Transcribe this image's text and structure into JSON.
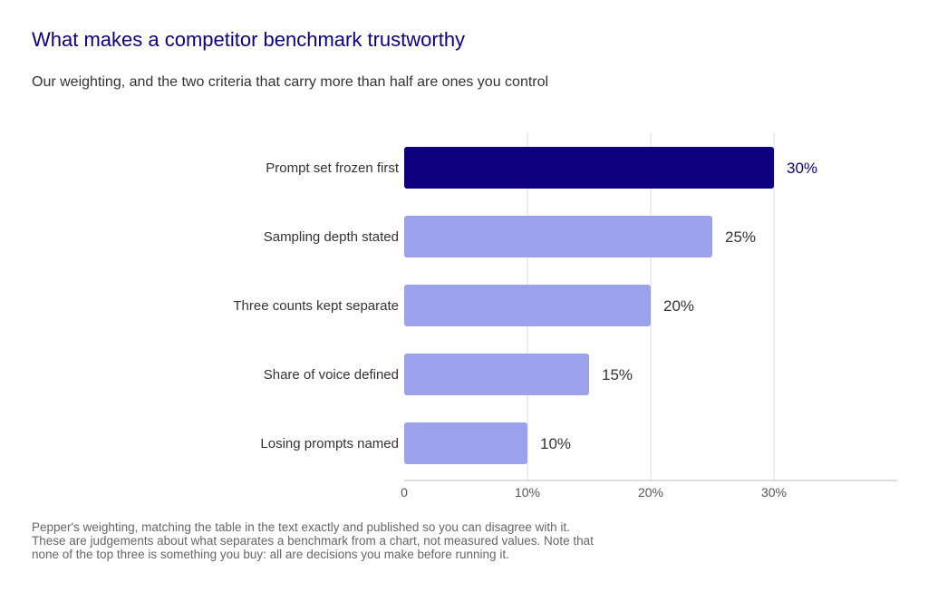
{
  "header": {
    "title": "What makes a competitor benchmark trustworthy",
    "subtitle": "Our weighting, and the two criteria that carry more than half are ones you control"
  },
  "footnote": "Pepper's weighting, matching the table in the text exactly and published so you can disagree with it. These are judgements about what separates a benchmark from a chart, not measured values. Note that none of the top three is something you buy: all are decisions you make before running it.",
  "colors": {
    "highlight": "#0d0080",
    "bar": "#9ba1eb",
    "grid": "#dddddd",
    "axis": "#bbbbbb"
  },
  "chart_data": {
    "type": "bar",
    "orientation": "horizontal",
    "categories": [
      "Prompt set frozen first",
      "Sampling depth stated",
      "Three counts kept separate",
      "Share of voice defined",
      "Losing prompts named"
    ],
    "values": [
      30,
      25,
      20,
      15,
      10
    ],
    "value_labels": [
      "30%",
      "25%",
      "20%",
      "15%",
      "10%"
    ],
    "highlighted_index": 0,
    "xticks": [
      0,
      10,
      20,
      30
    ],
    "xtick_labels": [
      "0",
      "10%",
      "20%",
      "30%"
    ],
    "xlim": [
      0,
      40
    ],
    "grid": true
  }
}
